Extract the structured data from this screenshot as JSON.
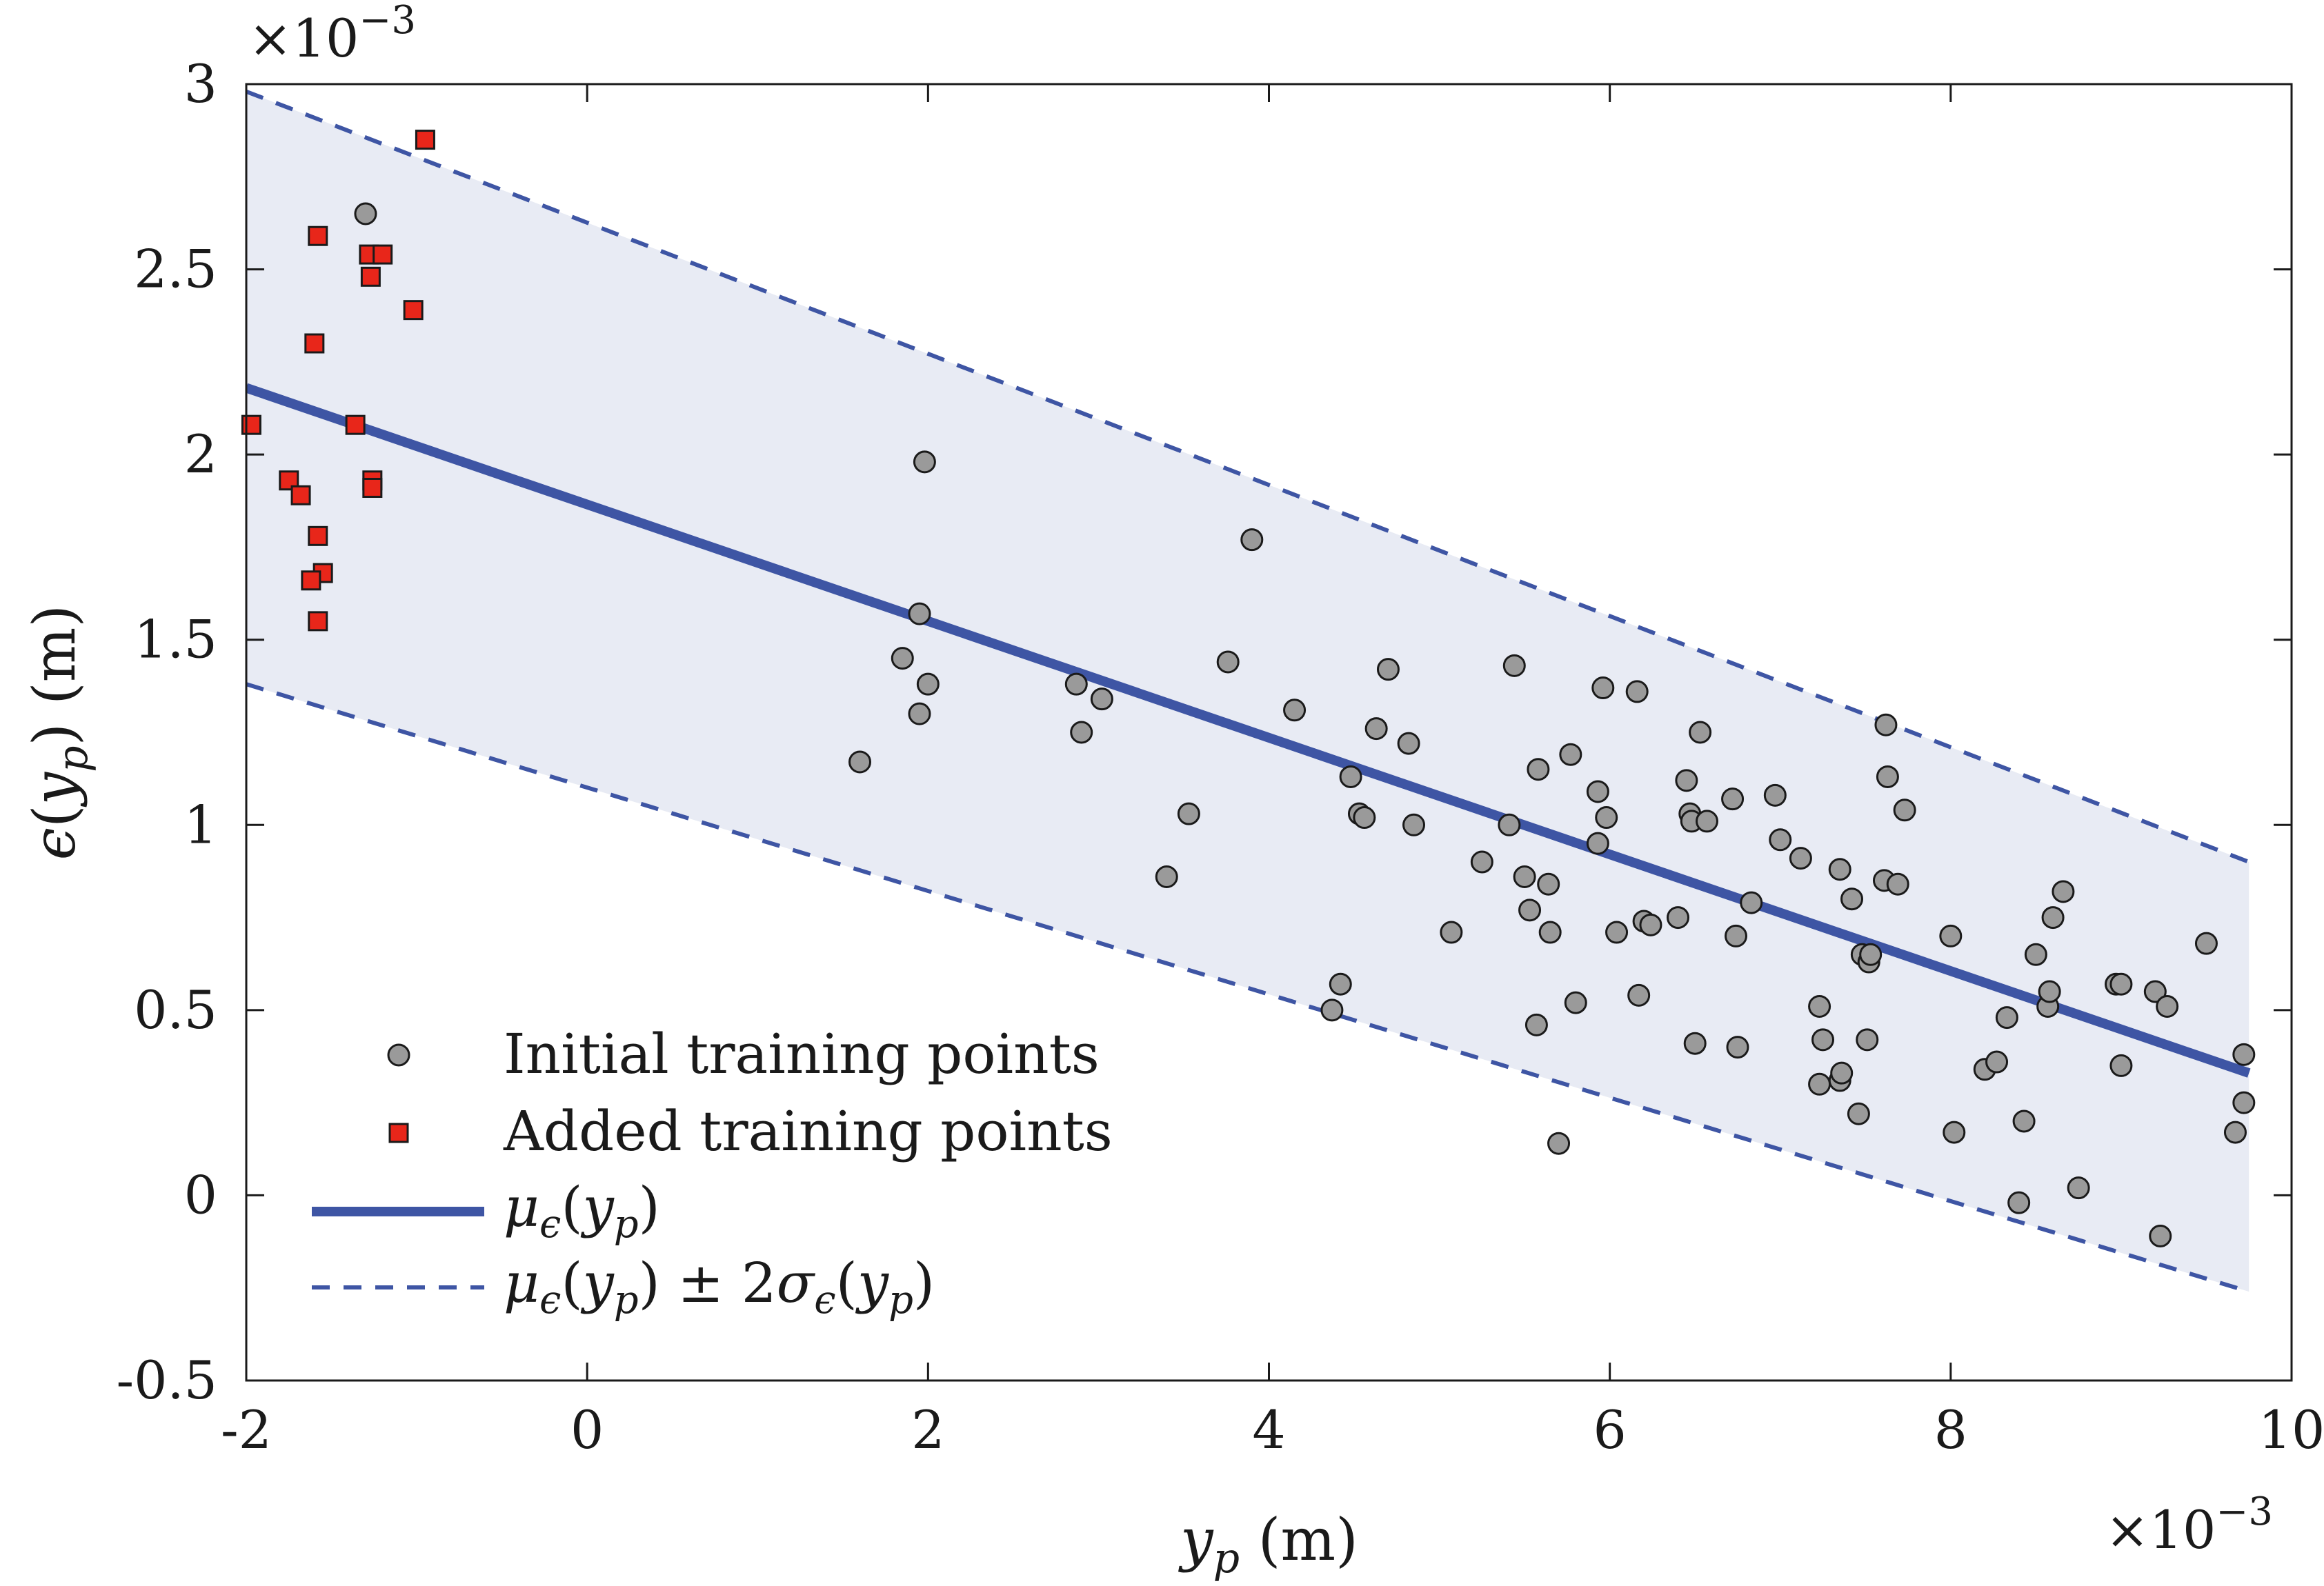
{
  "chart_data": {
    "type": "scatter",
    "title": "",
    "xlabel": "y_p (m)",
    "ylabel": "ϵ(y_p) (m)",
    "xlim": [
      -2,
      10
    ],
    "ylim": [
      -0.5,
      3
    ],
    "x_scale_note": "×10⁻³",
    "y_scale_note": "×10⁻³",
    "x_ticks": [
      -2,
      0,
      2,
      4,
      6,
      8,
      10
    ],
    "x_tick_labels": [
      "-2",
      "0",
      "2",
      "4",
      "6",
      "8",
      "10"
    ],
    "y_ticks": [
      -0.5,
      0,
      0.5,
      1,
      1.5,
      2,
      2.5,
      3
    ],
    "y_tick_labels": [
      "-0.5",
      "0",
      "0.5",
      "1",
      "1.5",
      "2",
      "2.5",
      "3"
    ],
    "grid": false,
    "legend_position": "bottom-left",
    "mean": {
      "name": "μϵ(yp)",
      "x": [
        -2,
        9.75
      ],
      "y": [
        2.18,
        0.33
      ],
      "color": "#3e55a4"
    },
    "band": {
      "name": "μϵ(yp) ± 2σϵ(yp)",
      "x": [
        -2,
        9.75
      ],
      "upper": [
        2.98,
        0.9
      ],
      "lower": [
        1.38,
        -0.26
      ],
      "fill": "#e8ebf4",
      "color": "#3e55a4"
    },
    "series": [
      {
        "name": "Initial training points",
        "marker": "circle",
        "color": "#9a9a9a",
        "points": [
          [
            -1.3,
            2.65
          ],
          [
            1.98,
            1.98
          ],
          [
            1.6,
            1.17
          ],
          [
            1.85,
            1.45
          ],
          [
            1.95,
            1.57
          ],
          [
            1.95,
            1.3
          ],
          [
            2.0,
            1.38
          ],
          [
            2.87,
            1.38
          ],
          [
            2.9,
            1.25
          ],
          [
            3.02,
            1.34
          ],
          [
            3.4,
            0.86
          ],
          [
            3.53,
            1.03
          ],
          [
            3.76,
            1.44
          ],
          [
            3.9,
            1.77
          ],
          [
            4.15,
            1.31
          ],
          [
            4.37,
            0.5
          ],
          [
            4.42,
            0.57
          ],
          [
            4.48,
            1.13
          ],
          [
            4.53,
            1.03
          ],
          [
            4.56,
            1.02
          ],
          [
            4.63,
            1.26
          ],
          [
            4.7,
            1.42
          ],
          [
            4.82,
            1.22
          ],
          [
            4.85,
            1.0
          ],
          [
            5.07,
            0.71
          ],
          [
            5.25,
            0.9
          ],
          [
            5.41,
            1.0
          ],
          [
            5.44,
            1.43
          ],
          [
            5.5,
            0.86
          ],
          [
            5.53,
            0.77
          ],
          [
            5.57,
            0.46
          ],
          [
            5.58,
            1.15
          ],
          [
            5.64,
            0.84
          ],
          [
            5.65,
            0.71
          ],
          [
            5.7,
            0.14
          ],
          [
            5.77,
            1.19
          ],
          [
            5.8,
            0.52
          ],
          [
            5.93,
            0.95
          ],
          [
            5.93,
            1.09
          ],
          [
            5.96,
            1.37
          ],
          [
            5.98,
            1.02
          ],
          [
            6.04,
            0.71
          ],
          [
            6.16,
            1.36
          ],
          [
            6.17,
            0.54
          ],
          [
            6.2,
            0.74
          ],
          [
            6.24,
            0.73
          ],
          [
            6.4,
            0.75
          ],
          [
            6.45,
            1.12
          ],
          [
            6.47,
            1.03
          ],
          [
            6.48,
            1.01
          ],
          [
            6.5,
            0.41
          ],
          [
            6.53,
            1.25
          ],
          [
            6.57,
            1.01
          ],
          [
            6.72,
            1.07
          ],
          [
            6.74,
            0.7
          ],
          [
            6.75,
            0.4
          ],
          [
            6.83,
            0.79
          ],
          [
            6.97,
            1.08
          ],
          [
            7.0,
            0.96
          ],
          [
            7.12,
            0.91
          ],
          [
            7.23,
            0.51
          ],
          [
            7.23,
            0.3
          ],
          [
            7.25,
            0.42
          ],
          [
            7.35,
            0.31
          ],
          [
            7.36,
            0.33
          ],
          [
            7.35,
            0.88
          ],
          [
            7.42,
            0.8
          ],
          [
            7.46,
            0.22
          ],
          [
            7.48,
            0.65
          ],
          [
            7.51,
            0.42
          ],
          [
            7.52,
            0.63
          ],
          [
            7.53,
            0.65
          ],
          [
            7.61,
            0.85
          ],
          [
            7.62,
            1.27
          ],
          [
            7.63,
            1.13
          ],
          [
            7.69,
            0.84
          ],
          [
            7.73,
            1.04
          ],
          [
            8.0,
            0.7
          ],
          [
            8.02,
            0.17
          ],
          [
            8.2,
            0.34
          ],
          [
            8.27,
            0.36
          ],
          [
            8.33,
            0.48
          ],
          [
            8.4,
            -0.02
          ],
          [
            8.43,
            0.2
          ],
          [
            8.5,
            0.65
          ],
          [
            8.57,
            0.51
          ],
          [
            8.58,
            0.55
          ],
          [
            8.6,
            0.75
          ],
          [
            8.66,
            0.82
          ],
          [
            8.75,
            0.02
          ],
          [
            8.97,
            0.57
          ],
          [
            9.0,
            0.35
          ],
          [
            9.0,
            0.57
          ],
          [
            9.2,
            0.55
          ],
          [
            9.23,
            -0.11
          ],
          [
            9.27,
            0.51
          ],
          [
            9.5,
            0.68
          ],
          [
            9.67,
            0.17
          ],
          [
            9.72,
            0.38
          ],
          [
            9.72,
            0.25
          ]
        ]
      },
      {
        "name": "Added training points",
        "marker": "square",
        "color": "#e8261a",
        "points": [
          [
            -0.95,
            2.85
          ],
          [
            -1.58,
            2.59
          ],
          [
            -1.28,
            2.54
          ],
          [
            -1.2,
            2.54
          ],
          [
            -1.27,
            2.48
          ],
          [
            -1.02,
            2.39
          ],
          [
            -1.6,
            2.3
          ],
          [
            -1.97,
            2.08
          ],
          [
            -1.36,
            2.08
          ],
          [
            -1.75,
            1.93
          ],
          [
            -1.68,
            1.89
          ],
          [
            -1.26,
            1.93
          ],
          [
            -1.26,
            1.91
          ],
          [
            -1.58,
            1.78
          ],
          [
            -1.55,
            1.68
          ],
          [
            -1.62,
            1.66
          ],
          [
            -1.58,
            1.55
          ]
        ]
      }
    ]
  },
  "legend": {
    "initial_label": "Initial training points",
    "added_label": "Added training points"
  }
}
